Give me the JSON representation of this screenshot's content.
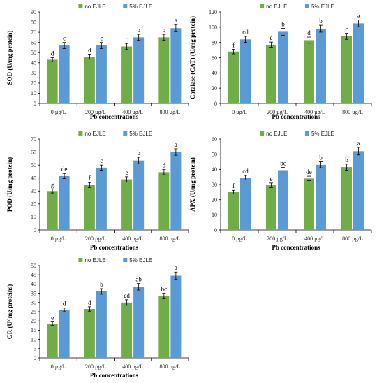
{
  "colors": {
    "no_ejle": "#70ad47",
    "ejle_5": "#5b9bd5",
    "axis": "#000000"
  },
  "chart_data": [
    {
      "type": "bar",
      "categories": [
        "0 µg/L",
        "200 µg/L",
        "400 µg/L",
        "800 µg/L"
      ],
      "xlabel": "Pb concentrations",
      "ylabel": "SOD (U/mg protein)",
      "ylim": [
        0,
        90
      ],
      "yticks": [
        0,
        10,
        20,
        30,
        40,
        50,
        60,
        70,
        80,
        90
      ],
      "legend": "top",
      "series": [
        {
          "name": "no EJLE",
          "values": [
            43,
            46,
            56,
            65
          ],
          "errors": [
            2,
            2.5,
            3,
            3
          ],
          "letters": [
            "d",
            "d",
            "c",
            "b"
          ]
        },
        {
          "name": "5% EJLE",
          "values": [
            57,
            57,
            65,
            74
          ],
          "errors": [
            3,
            3,
            3,
            3.5
          ],
          "letters": [
            "c",
            "c",
            "b",
            "a"
          ]
        }
      ]
    },
    {
      "type": "bar",
      "categories": [
        "0 µg/L",
        "200 µg/L",
        "400 µg/L",
        "800 µg/L"
      ],
      "xlabel": "Pb concentrations",
      "ylabel": "Catalase (CAT) (U/mg protein)",
      "ylim": [
        0,
        120
      ],
      "yticks": [
        0,
        20,
        40,
        60,
        80,
        100,
        120
      ],
      "legend": "top",
      "series": [
        {
          "name": "no EJLE",
          "values": [
            68,
            77,
            83,
            88
          ],
          "errors": [
            3,
            3.5,
            4,
            4
          ],
          "letters": [
            "f",
            "e",
            "d",
            "c"
          ]
        },
        {
          "name": "5% EJLE",
          "values": [
            84,
            94,
            98,
            105
          ],
          "errors": [
            4,
            4.5,
            4.5,
            4.5
          ],
          "letters": [
            "cd",
            "b",
            "b",
            "a"
          ]
        }
      ]
    },
    {
      "type": "bar",
      "categories": [
        "0 µg/L",
        "200 µg/L",
        "400 µg/L",
        "800 µg/L"
      ],
      "xlabel": "Pb concentrations",
      "ylabel": "POD (U/mg protein)",
      "ylim": [
        0,
        70
      ],
      "yticks": [
        0,
        10,
        20,
        30,
        40,
        50,
        60,
        70
      ],
      "legend": "top",
      "series": [
        {
          "name": "no EJLE",
          "values": [
            30,
            34.5,
            39,
            44.5
          ],
          "errors": [
            1.5,
            2,
            2,
            2
          ],
          "letters": [
            "g",
            "f",
            "e",
            "d"
          ]
        },
        {
          "name": "5% EJLE",
          "values": [
            41.5,
            48,
            53.5,
            60
          ],
          "errors": [
            2,
            2,
            2.5,
            2.5
          ],
          "letters": [
            "de",
            "c",
            "b",
            "a"
          ]
        }
      ]
    },
    {
      "type": "bar",
      "categories": [
        "0 µg/L",
        "200 µg/L",
        "400 µg/L",
        "800 µg/L"
      ],
      "xlabel": "Pb concentrations",
      "ylabel": "APX (U/mg protein)",
      "ylim": [
        0,
        60
      ],
      "yticks": [
        0,
        10,
        20,
        30,
        40,
        50,
        60
      ],
      "legend": "top",
      "series": [
        {
          "name": "no EJLE",
          "values": [
            25,
            29.5,
            34,
            41.5
          ],
          "errors": [
            1.2,
            1.5,
            1.5,
            2
          ],
          "letters": [
            "f",
            "e",
            "de",
            "b"
          ]
        },
        {
          "name": "5% EJLE",
          "values": [
            34.5,
            39.5,
            43,
            52
          ],
          "errors": [
            1.5,
            1.8,
            2,
            2.5
          ],
          "letters": [
            "cd",
            "bc",
            "b",
            "a"
          ]
        }
      ]
    },
    {
      "type": "bar",
      "categories": [
        "0 µg/L",
        "200 µg/L",
        "400 µg/L",
        "800 µg/L"
      ],
      "xlabel": "Pb concentrations",
      "ylabel": "GR (U/ mg proteins)",
      "ylim": [
        0,
        50
      ],
      "yticks": [
        0,
        5,
        10,
        15,
        20,
        25,
        30,
        35,
        40,
        45,
        50
      ],
      "legend": "top",
      "series": [
        {
          "name": "no EJLE",
          "values": [
            18.5,
            26.5,
            30,
            33.5
          ],
          "errors": [
            1,
            1.2,
            1.5,
            1.5
          ],
          "letters": [
            "e",
            "d",
            "cd",
            "bc"
          ]
        },
        {
          "name": "5% EJLE",
          "values": [
            26,
            36,
            38.5,
            44.5
          ],
          "errors": [
            1,
            1.5,
            1.8,
            2
          ],
          "letters": [
            "d",
            "b",
            "ab",
            "a"
          ]
        }
      ]
    }
  ]
}
